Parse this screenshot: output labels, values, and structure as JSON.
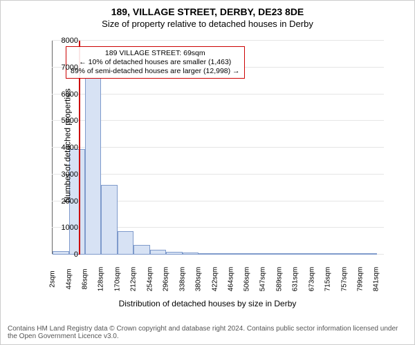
{
  "title": "189, VILLAGE STREET, DERBY, DE23 8DE",
  "subtitle": "Size of property relative to detached houses in Derby",
  "ylabel": "Number of detached properties",
  "xlabel": "Distribution of detached houses by size in Derby",
  "attribution": "Contains HM Land Registry data © Crown copyright and database right 2024. Contains public sector information licensed under the Open Government Licence v3.0.",
  "annotation": {
    "line1": "189 VILLAGE STREET: 69sqm",
    "line2": "← 10% of detached houses are smaller (1,463)",
    "line3": "89% of semi-detached houses are larger (12,998) →"
  },
  "chart": {
    "type": "histogram",
    "background_color": "#ffffff",
    "grid_color": "#e5e5e5",
    "bar_fill": "#d7e2f4",
    "bar_stroke": "#7e9acb",
    "marker_color": "#cc0000",
    "annot_border": "#cc0000",
    "x_min": 0,
    "x_max": 860,
    "y_min": 0,
    "y_max": 8000,
    "y_ticks": [
      0,
      1000,
      2000,
      3000,
      4000,
      5000,
      6000,
      7000,
      8000
    ],
    "x_ticks": [
      2,
      44,
      86,
      128,
      170,
      212,
      254,
      296,
      338,
      380,
      422,
      464,
      506,
      547,
      589,
      631,
      673,
      715,
      757,
      799,
      841
    ],
    "x_tick_suffix": "sqm",
    "bin_width": 42,
    "bin_edges_start": 2,
    "values": [
      130,
      3950,
      6600,
      2600,
      880,
      350,
      175,
      110,
      70,
      50,
      35,
      25,
      20,
      15,
      10,
      8,
      6,
      5,
      4,
      3
    ],
    "marker_x": 69
  }
}
